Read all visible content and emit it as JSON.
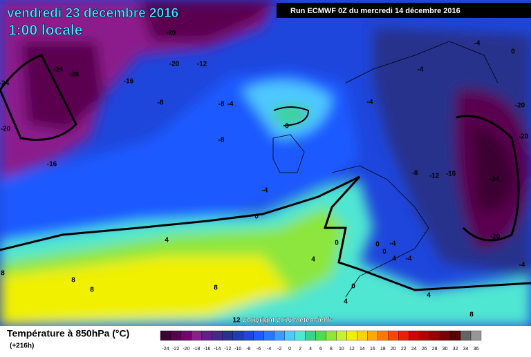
{
  "header": {
    "title": "vendredi 23 décembre 2016",
    "subtitle": "1:00 locale",
    "run": "Run ECMWF 0Z du mercredi 14 décembre 2016"
  },
  "copyright": "Copyright 2016 Meteociel.fr",
  "legend": {
    "title": "Température à 850hPa (°C)",
    "lead": "(+216h)",
    "labels": [
      -24,
      -22,
      -20,
      -18,
      -16,
      -14,
      -12,
      -10,
      -8,
      -6,
      -4,
      -2,
      0,
      2,
      4,
      6,
      8,
      10,
      12,
      14,
      16,
      18,
      20,
      22,
      24,
      26,
      28,
      30,
      32,
      34,
      36
    ],
    "colors": [
      "#3c0032",
      "#5a0050",
      "#78006e",
      "#8c1e8c",
      "#641e8c",
      "#46288c",
      "#28328c",
      "#1e3cb4",
      "#1e46dc",
      "#1e5aff",
      "#2878ff",
      "#3c9bff",
      "#50c8ff",
      "#50e6d2",
      "#3cd28c",
      "#50dc50",
      "#8ce63c",
      "#c8f032",
      "#f0f000",
      "#ffd200",
      "#ffaa00",
      "#ff7800",
      "#ff4600",
      "#f01e00",
      "#d20000",
      "#b40000",
      "#960000",
      "#780000",
      "#5a0000",
      "#646464",
      "#969696"
    ]
  },
  "contour_labels": [
    -20,
    -20,
    -12,
    -24,
    -28,
    -24,
    -16,
    -8,
    -8,
    -4,
    -20,
    -16,
    -8,
    0,
    -4,
    0,
    4,
    -4,
    0,
    -4,
    -4,
    -20,
    -20,
    -8,
    -12,
    -16,
    -24,
    -20,
    -4,
    8,
    8,
    8,
    8,
    4,
    0,
    0,
    4,
    4,
    8,
    4,
    0,
    0,
    -4,
    -4,
    12
  ]
}
